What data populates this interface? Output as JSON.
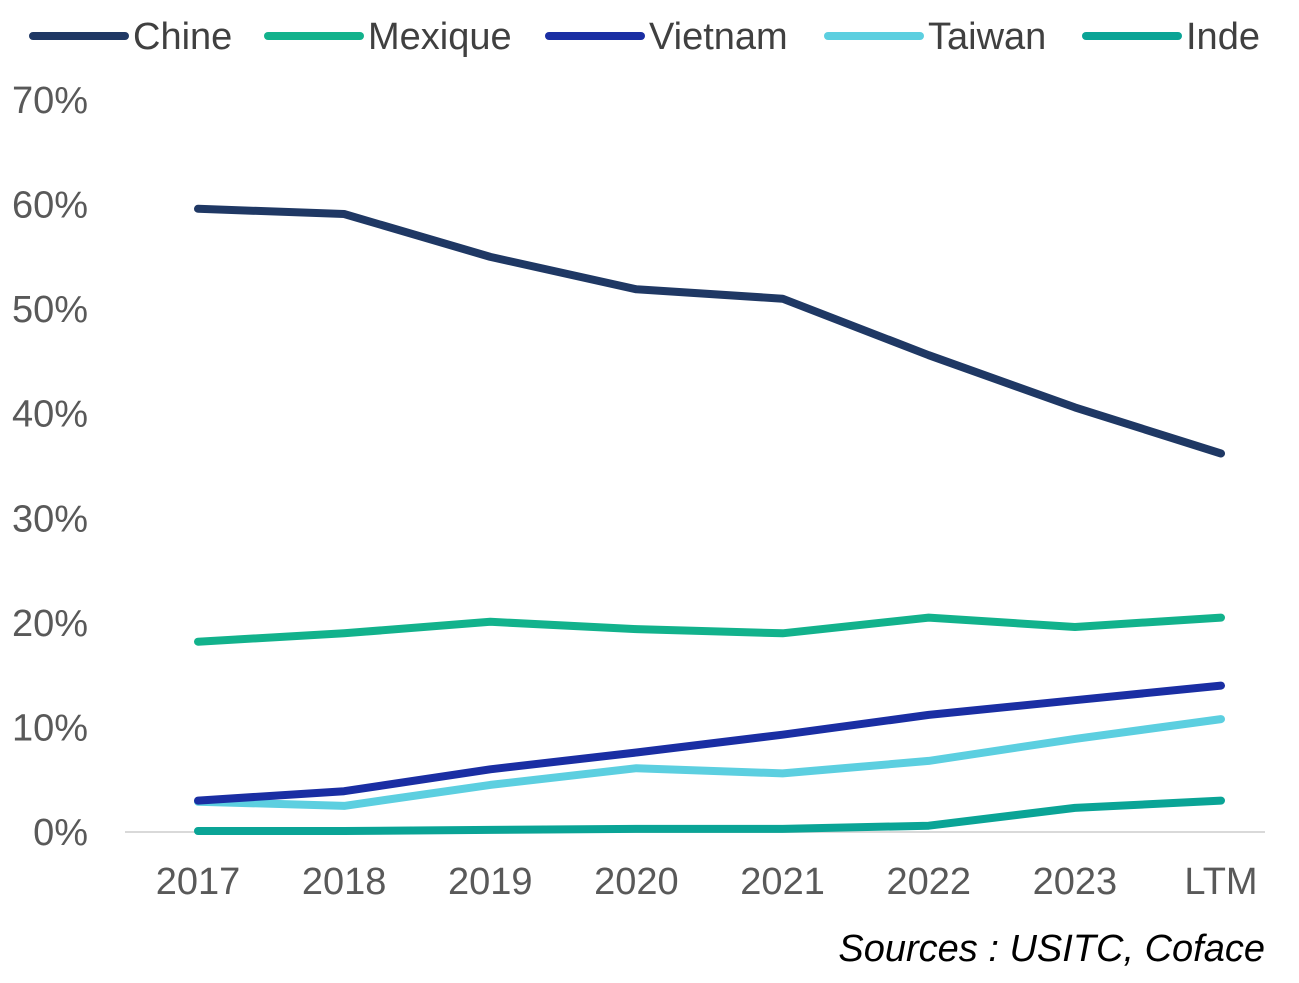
{
  "chart_data": {
    "type": "line",
    "categories": [
      "2017",
      "2018",
      "2019",
      "2020",
      "2021",
      "2022",
      "2023",
      "LTM"
    ],
    "series": [
      {
        "name": "Chine",
        "color": "#1f3864",
        "values": [
          59.6,
          59.1,
          55.0,
          51.9,
          51.0,
          45.6,
          40.6,
          36.2
        ]
      },
      {
        "name": "Mexique",
        "color": "#12b28c",
        "values": [
          18.2,
          19.0,
          20.1,
          19.4,
          19.0,
          20.5,
          19.6,
          20.5
        ]
      },
      {
        "name": "Vietnam",
        "color": "#1a2ea3",
        "values": [
          3.0,
          3.9,
          6.0,
          7.6,
          9.3,
          11.2,
          12.6,
          14.0
        ]
      },
      {
        "name": "Taiwan",
        "color": "#5ccfe0",
        "values": [
          2.9,
          2.5,
          4.5,
          6.1,
          5.6,
          6.8,
          8.9,
          10.8
        ]
      },
      {
        "name": "Inde",
        "color": "#0aa496",
        "values": [
          0.1,
          0.1,
          0.2,
          0.3,
          0.3,
          0.6,
          2.3,
          3.0
        ]
      }
    ],
    "y_ticks": [
      "0%",
      "10%",
      "20%",
      "30%",
      "40%",
      "50%",
      "60%",
      "70%"
    ],
    "ylim": [
      0,
      70
    ],
    "grid": false,
    "legend_position": "top",
    "title": "",
    "xlabel": "",
    "ylabel": ""
  },
  "source_note": "Sources : USITC, Coface"
}
